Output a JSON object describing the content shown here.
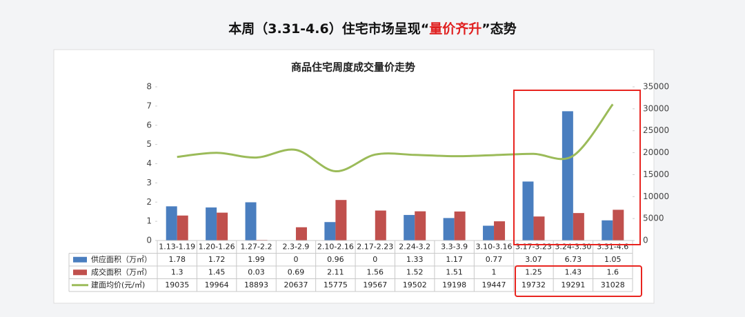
{
  "header": {
    "title_parts": [
      "本周（3.31-4.6）住宅市场呈现“",
      "量价齐升",
      "”态势"
    ]
  },
  "chart_data": {
    "type": "bar-line-table",
    "title": "商品住宅周度成交量价走势",
    "categories": [
      "1.13-1.19",
      "1.20-1.26",
      "1.27-2.2",
      "2.3-2.9",
      "2.10-2.16",
      "2.17-2.23",
      "2.24-3.2",
      "3.3-3.9",
      "3.10-3.16",
      "3.17-3.23",
      "3.24-3.30",
      "3.31-4.6"
    ],
    "series": [
      {
        "name": "供应面积（万㎡）",
        "color": "#4a7ebf",
        "type": "bar",
        "values": [
          1.78,
          1.72,
          1.99,
          0,
          0.96,
          0,
          1.33,
          1.17,
          0.77,
          3.07,
          6.73,
          1.05
        ]
      },
      {
        "name": "成交面积（万㎡）",
        "color": "#c0504d",
        "type": "bar",
        "values": [
          1.3,
          1.45,
          0.03,
          0.69,
          2.11,
          1.56,
          1.52,
          1.51,
          1,
          1.25,
          1.43,
          1.6
        ]
      },
      {
        "name": "建面均价(元/㎡)",
        "color": "#9bbb59",
        "type": "line",
        "axis": "y2",
        "values": [
          19035,
          19964,
          18893,
          20637,
          15775,
          19567,
          19502,
          19198,
          19447,
          19732,
          19291,
          31028
        ]
      }
    ],
    "ylim": [
      0,
      8
    ],
    "yticks": [
      0,
      1,
      2,
      3,
      4,
      5,
      6,
      7,
      8
    ],
    "y2lim": [
      0,
      35000
    ],
    "y2ticks": [
      0,
      5000,
      10000,
      15000,
      20000,
      25000,
      30000,
      35000
    ]
  }
}
